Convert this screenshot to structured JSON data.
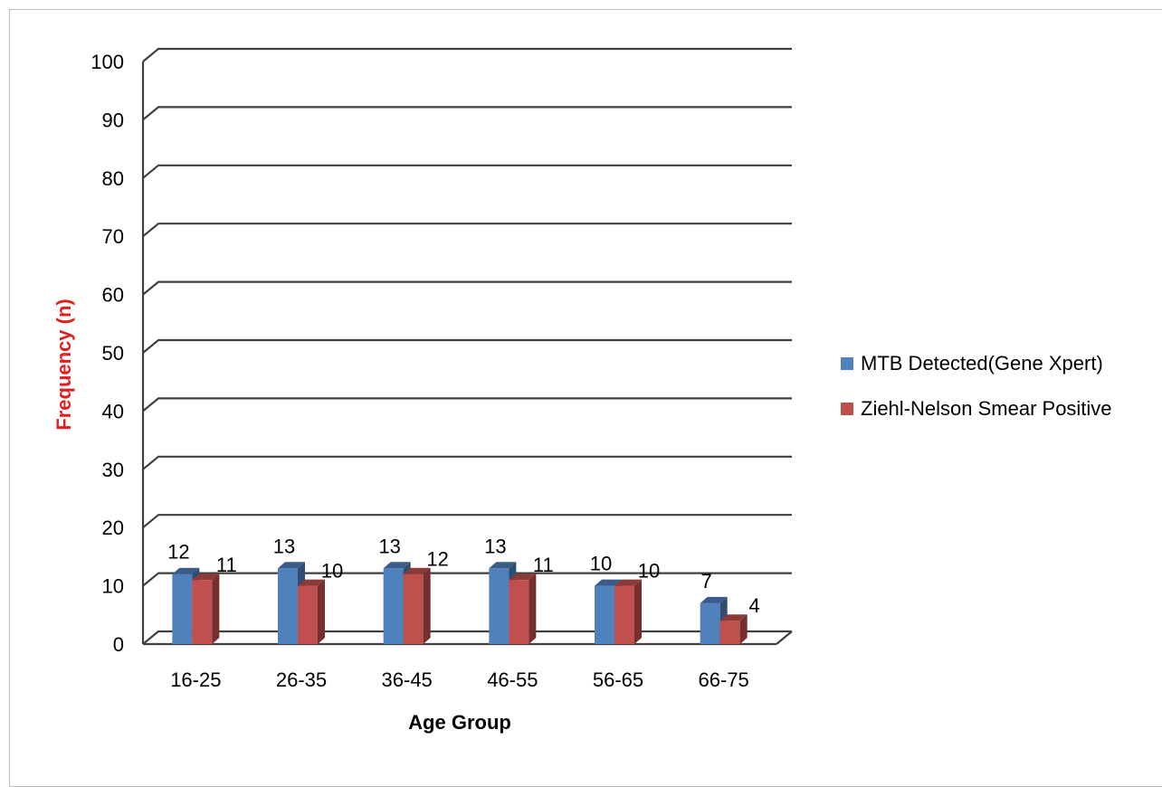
{
  "chart_data": {
    "type": "bar",
    "title": "",
    "xlabel": "Age Group",
    "ylabel": "Frequency (n)",
    "ylim": [
      0,
      100
    ],
    "yticks": [
      0,
      10,
      20,
      30,
      40,
      50,
      60,
      70,
      80,
      90,
      100
    ],
    "categories": [
      "16-25",
      "26-35",
      "36-45",
      "46-55",
      "56-65",
      "66-75"
    ],
    "series": [
      {
        "name": "MTB Detected(Gene Xpert)",
        "values": [
          12,
          13,
          13,
          13,
          10,
          7
        ],
        "color": "#4F81BD"
      },
      {
        "name": "Ziehl-Nelson Smear Positive",
        "values": [
          11,
          10,
          12,
          11,
          10,
          4
        ],
        "color": "#C0504D"
      }
    ],
    "grid": true,
    "legend_position": "right",
    "ylabel_color": "#E02020",
    "style": "3d-clustered-column"
  }
}
